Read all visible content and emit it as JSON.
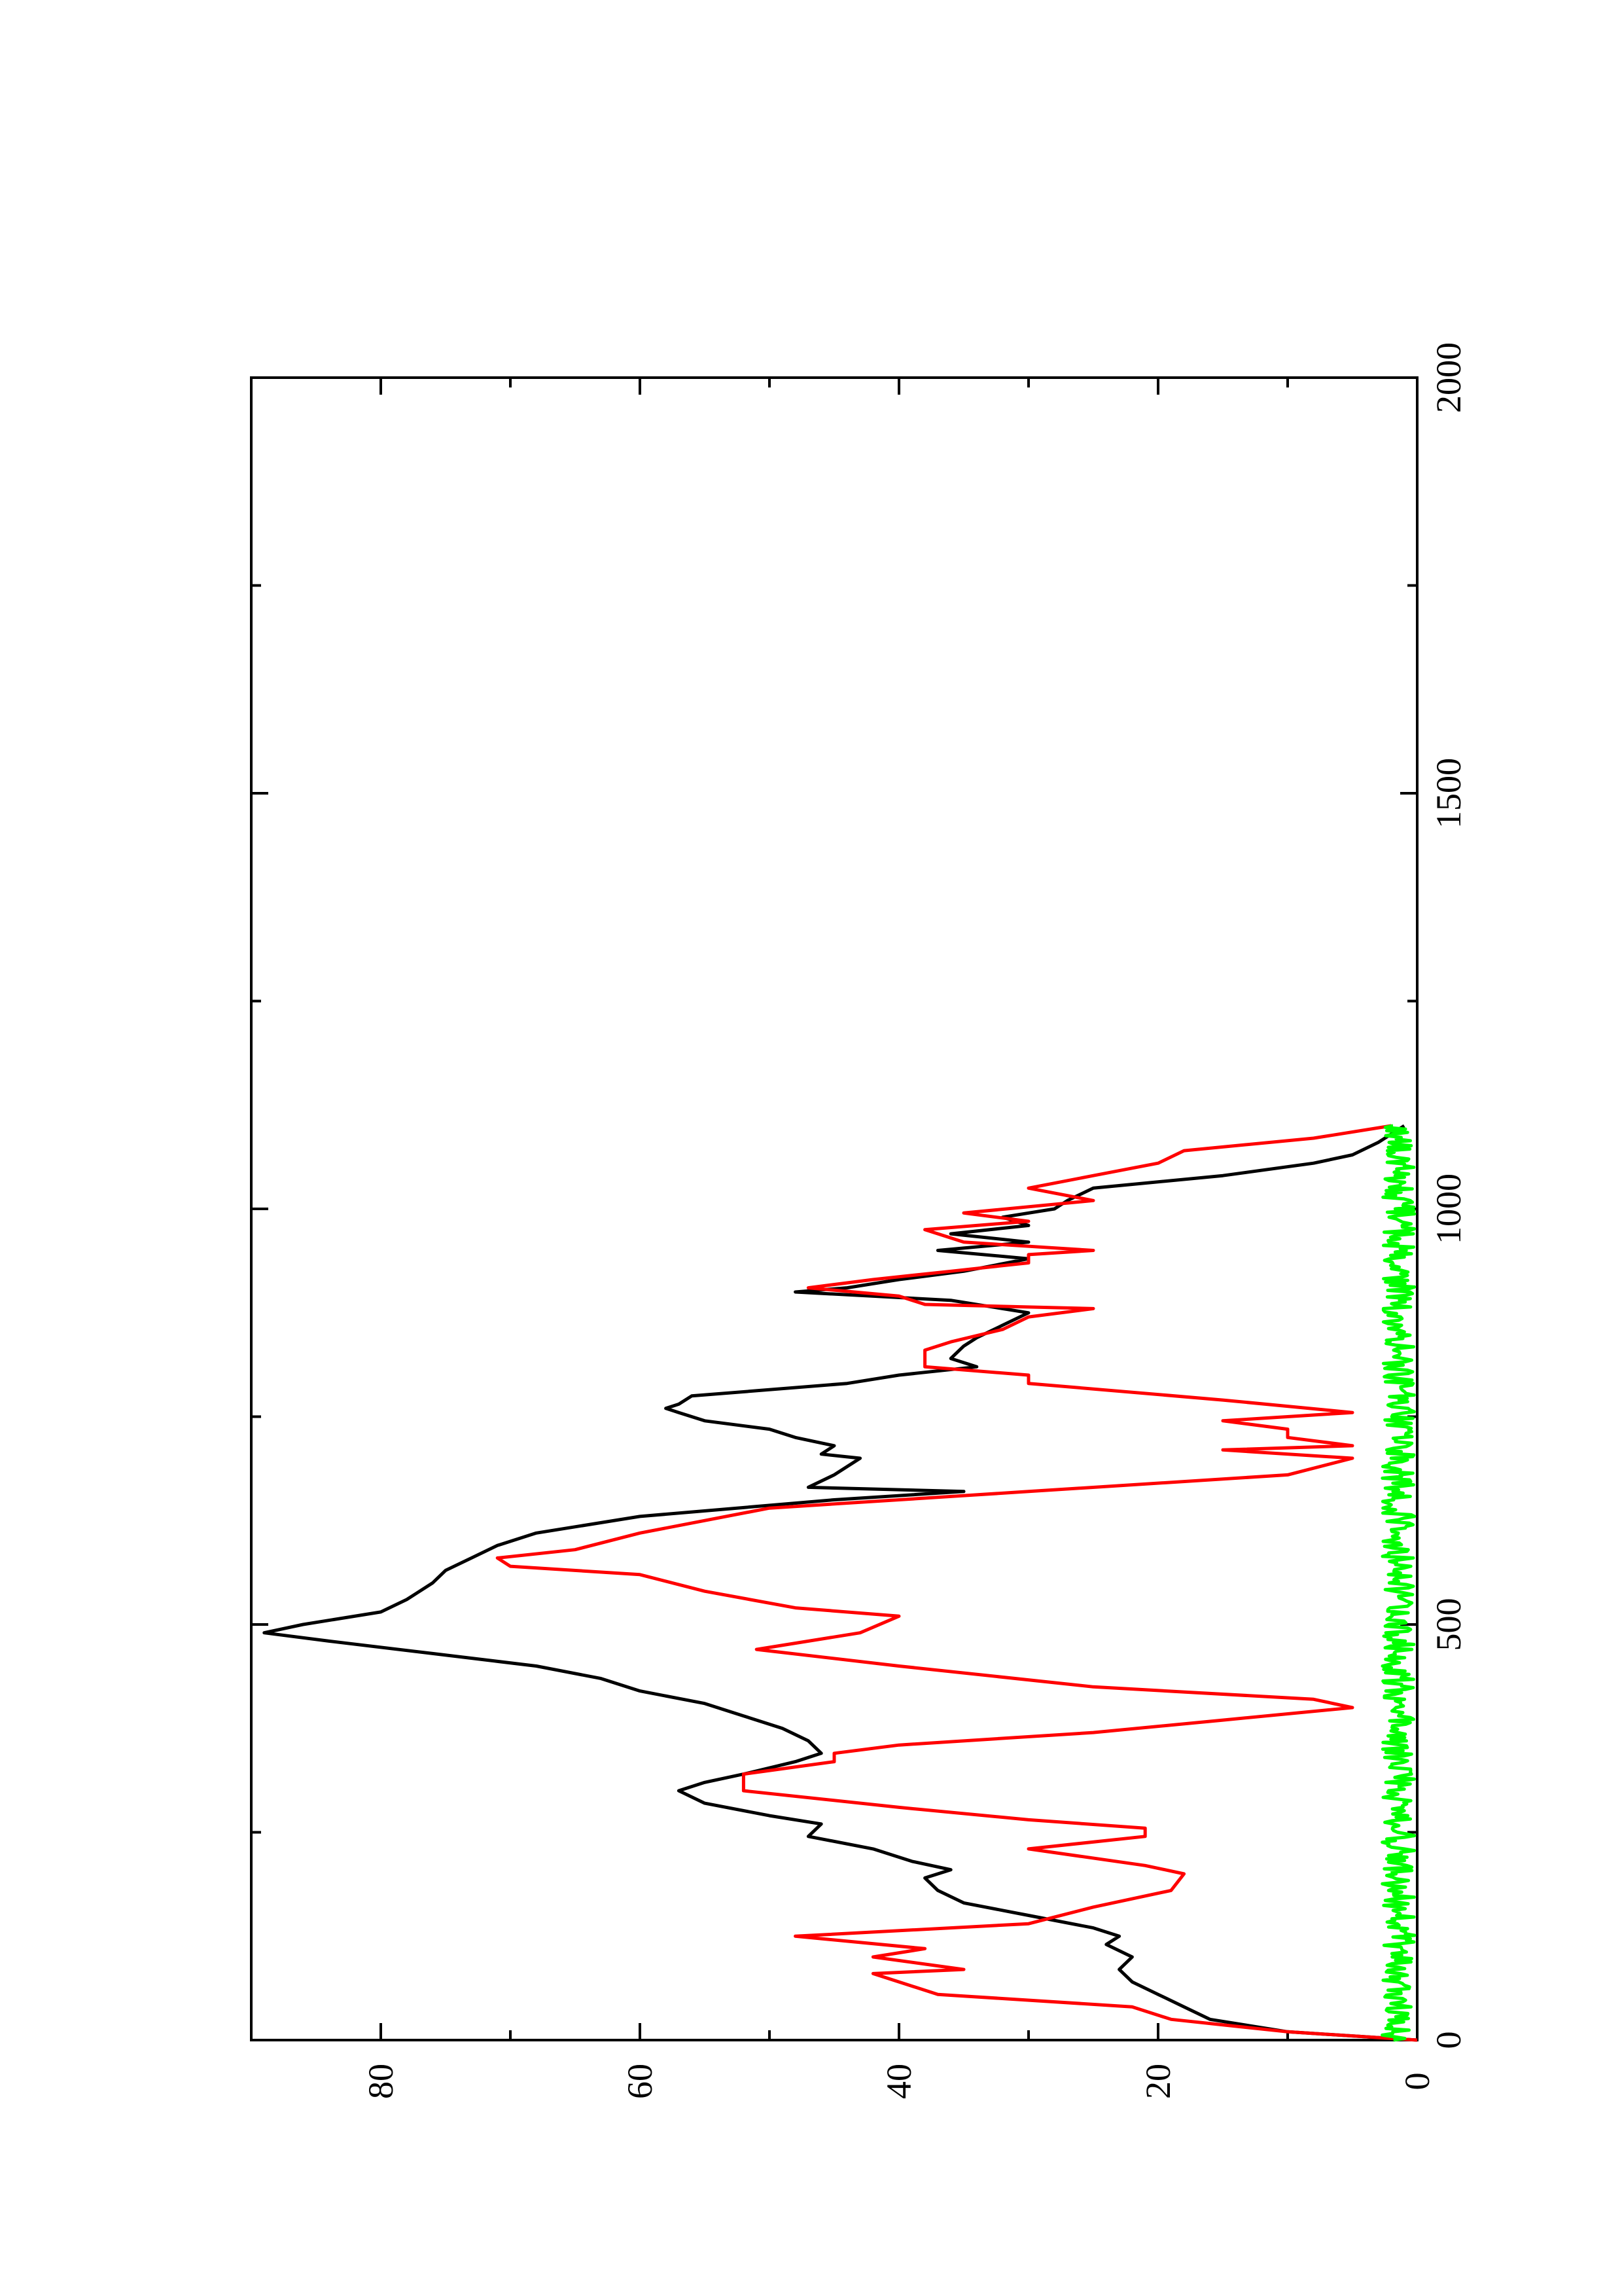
{
  "chart_data": {
    "type": "line",
    "orientation": "rotated 90 degrees counter-clockwise (x axis runs bottom to top)",
    "x_range": [
      0,
      2000
    ],
    "y_range": [
      0,
      90
    ],
    "x_ticks": [
      {
        "value": 0,
        "label": "0"
      },
      {
        "value": 500,
        "label": "500"
      },
      {
        "value": 1000,
        "label": "1000"
      },
      {
        "value": 1500,
        "label": "1500"
      },
      {
        "value": 2000,
        "label": "2000"
      }
    ],
    "x_minor_ticks": [
      250,
      750,
      1250,
      1750
    ],
    "y_ticks": [
      {
        "value": 0,
        "label": "0"
      },
      {
        "value": 20,
        "label": "20"
      },
      {
        "value": 40,
        "label": "40"
      },
      {
        "value": 60,
        "label": "60"
      },
      {
        "value": 80,
        "label": "80"
      }
    ],
    "y_minor_ticks": [
      10,
      30,
      50,
      70,
      90
    ],
    "grid": false,
    "legend": "none",
    "series": [
      {
        "color": "#000000",
        "x": [
          0,
          10,
          25,
          40,
          55,
          70,
          85,
          100,
          115,
          125,
          135,
          150,
          165,
          180,
          195,
          205,
          215,
          230,
          245,
          260,
          270,
          285,
          300,
          310,
          320,
          335,
          345,
          360,
          375,
          390,
          405,
          420,
          435,
          450,
          465,
          480,
          490,
          500,
          515,
          530,
          550,
          565,
          580,
          595,
          610,
          630,
          650,
          660,
          665,
          680,
          700,
          705,
          715,
          725,
          735,
          745,
          755,
          760,
          765,
          775,
          790,
          800,
          810,
          820,
          835,
          845,
          860,
          875,
          890,
          900,
          905,
          915,
          925,
          940,
          950,
          960,
          970,
          980,
          990,
          1000,
          1010,
          1025,
          1040,
          1055,
          1065,
          1080,
          1090,
          1100
        ],
        "y": [
          0,
          10,
          16,
          18,
          20,
          22,
          23,
          22,
          24,
          23,
          25,
          30,
          35,
          37,
          38,
          36,
          39,
          42,
          47,
          46,
          50,
          55,
          57,
          55,
          52,
          48,
          46,
          47,
          49,
          52,
          55,
          60,
          63,
          68,
          76,
          84,
          89,
          86,
          80,
          78,
          76,
          75,
          73,
          71,
          68,
          60,
          45,
          35,
          47,
          45,
          43,
          46,
          45,
          48,
          50,
          55,
          57,
          58,
          57,
          56,
          44,
          40,
          34,
          36,
          35,
          34,
          32,
          30,
          36,
          48,
          44,
          40,
          35,
          30,
          37,
          30,
          36,
          30,
          32,
          28,
          27,
          25,
          15,
          8,
          5,
          3,
          2,
          1
        ]
      },
      {
        "color": "#ff0000",
        "x": [
          0,
          10,
          25,
          40,
          55,
          70,
          80,
          85,
          100,
          110,
          125,
          140,
          160,
          180,
          200,
          210,
          230,
          245,
          255,
          265,
          280,
          300,
          320,
          335,
          345,
          355,
          370,
          385,
          400,
          410,
          425,
          450,
          470,
          490,
          510,
          520,
          540,
          560,
          570,
          580,
          590,
          610,
          640,
          660,
          680,
          700,
          710,
          715,
          725,
          735,
          745,
          755,
          770,
          790,
          800,
          810,
          820,
          830,
          840,
          855,
          870,
          880,
          885,
          895,
          905,
          915,
          925,
          935,
          945,
          950,
          960,
          975,
          985,
          995,
          1010,
          1025,
          1040,
          1055,
          1070,
          1085,
          1100
        ],
        "y": [
          0,
          10,
          19,
          22,
          37,
          40,
          42,
          35,
          42,
          38,
          48,
          30,
          25,
          19,
          18,
          21,
          30,
          21,
          21,
          30,
          40,
          52,
          52,
          45,
          45,
          40,
          25,
          15,
          5,
          8,
          25,
          40,
          51,
          43,
          40,
          48,
          55,
          60,
          70,
          71,
          65,
          60,
          50,
          30,
          10,
          5,
          15,
          5,
          10,
          10,
          15,
          5,
          15,
          30,
          30,
          38,
          38,
          38,
          36,
          32,
          30,
          25,
          38,
          40,
          47,
          42,
          36,
          30,
          30,
          25,
          35,
          38,
          30,
          35,
          25,
          30,
          25,
          20,
          18,
          8,
          2
        ]
      },
      {
        "color": "#00ff00",
        "x": [
          0,
          100,
          200,
          300,
          400,
          500,
          600,
          700,
          800,
          900,
          1000,
          1100
        ],
        "y": [
          1,
          2,
          1.5,
          1,
          2,
          1.5,
          1,
          2,
          1.5,
          1,
          2,
          1
        ],
        "noise_amplitude": 2.5
      }
    ]
  }
}
